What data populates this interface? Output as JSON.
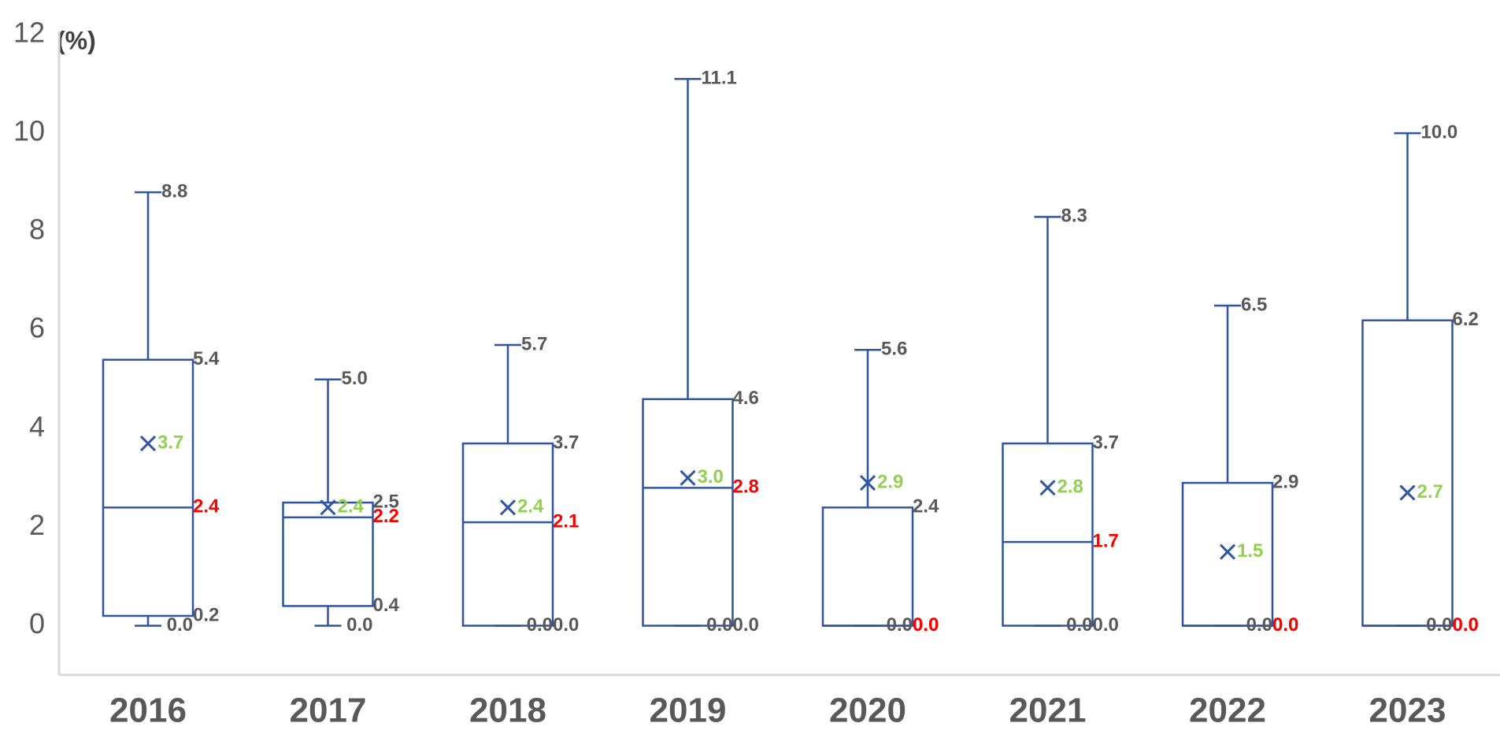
{
  "chart_data": {
    "type": "box",
    "y_label": "(%)",
    "categories": [
      "2016",
      "2017",
      "2018",
      "2019",
      "2020",
      "2021",
      "2022",
      "2023"
    ],
    "ylim": [
      -1,
      12
    ],
    "yticks": [
      0,
      2,
      4,
      6,
      8,
      10,
      12
    ],
    "grid": false,
    "color": "#2f55a4",
    "label_color": "#595959",
    "min": {
      "values": [
        0,
        0,
        0,
        0,
        0,
        0,
        0,
        0
      ],
      "value_labels": [
        "0.0",
        "0.0",
        "0.0",
        "0.0",
        "0.0",
        "0.0",
        "0.0",
        "0.0"
      ]
    },
    "q1": {
      "values": [
        0.2,
        0.4,
        0,
        0,
        0,
        0,
        0,
        0
      ],
      "value_labels": [
        "0.2",
        "0.4",
        "0.0",
        "0.0",
        "0.0",
        "0.0",
        "0.0",
        "0.0"
      ]
    },
    "median": {
      "color": "#ff0000",
      "values": [
        2.4,
        2.2,
        2.1,
        2.8,
        0,
        1.7,
        0,
        0
      ],
      "value_labels": [
        "2.4",
        "2.2",
        "2.1",
        "2.8",
        "0.0",
        "1.7",
        "0.0",
        "0.0"
      ]
    },
    "q3": {
      "values": [
        5.4,
        2.5,
        3.7,
        4.6,
        2.4,
        3.7,
        2.9,
        6.2
      ],
      "value_labels": [
        "5.4",
        "2.5",
        "3.7",
        "4.6",
        "2.4",
        "3.7",
        "2.9",
        "6.2"
      ]
    },
    "max": {
      "values": [
        8.8,
        5.0,
        5.7,
        11.1,
        5.6,
        8.3,
        6.5,
        10.0
      ],
      "value_labels": [
        "8.8",
        "5.0",
        "5.7",
        "11.1",
        "5.6",
        "8.3",
        "6.5",
        "10.0"
      ]
    },
    "mean": {
      "color": "#92d050",
      "values": [
        3.7,
        2.4,
        2.4,
        3.0,
        2.9,
        2.8,
        1.5,
        2.7
      ],
      "value_labels": [
        "3.7",
        "2.4",
        "2.4",
        "3.0",
        "2.9",
        "2.8",
        "1.5",
        "2.7"
      ]
    }
  }
}
